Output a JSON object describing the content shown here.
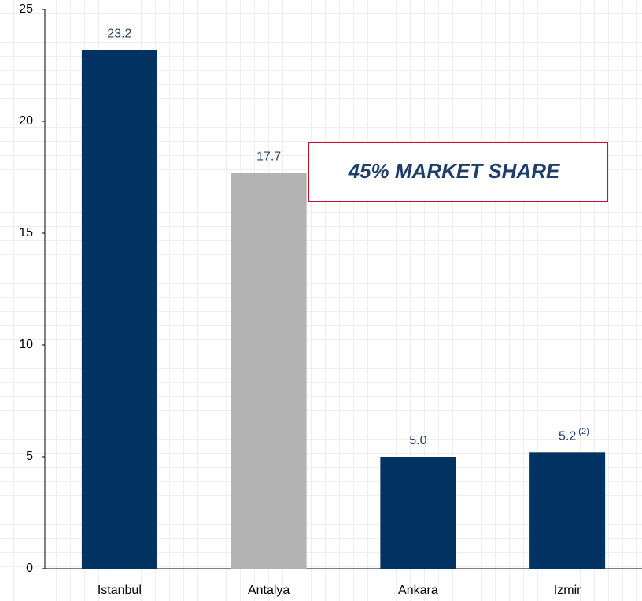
{
  "chart_data": {
    "type": "bar",
    "categories": [
      "Istanbul",
      "Antalya",
      "Ankara",
      "Izmir"
    ],
    "values": [
      23.2,
      17.7,
      5.0,
      5.2
    ],
    "value_labels": [
      "23.2",
      "17.7",
      "5.0",
      "5.2"
    ],
    "label_notes": [
      {
        "index": 3,
        "text": "(2)"
      }
    ],
    "colors": [
      "#003262",
      "#b3b3b3",
      "#003262",
      "#003262"
    ],
    "value_label_color": "#1f3f6b",
    "ylim": [
      0,
      25
    ],
    "yticks": [
      0,
      5,
      10,
      15,
      20,
      25
    ],
    "callout": "45% MARKET SHARE",
    "callout_border": "#c8102e"
  }
}
